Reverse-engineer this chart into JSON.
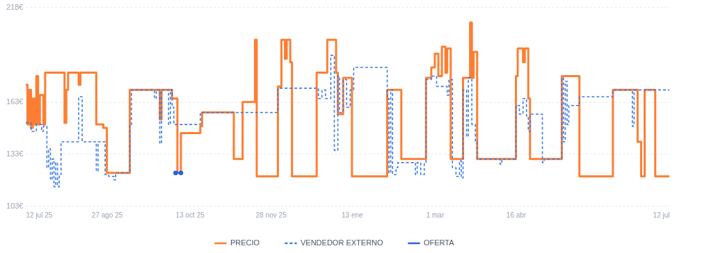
{
  "chart_data": {
    "type": "step",
    "xlim": [
      "2025-07-12",
      "2026-07-12"
    ],
    "ylim": [
      103,
      218
    ],
    "xticks": [
      {
        "value": "2025-07-12",
        "label": "12 jul 25"
      },
      {
        "value": "2025-08-27",
        "label": "27 ago 25"
      },
      {
        "value": "2025-10-13",
        "label": "13 oct 25"
      },
      {
        "value": "2025-11-28",
        "label": "28 nov 25"
      },
      {
        "value": "2026-01-13",
        "label": "13 ene"
      },
      {
        "value": "2026-03-01",
        "label": "1 mar"
      },
      {
        "value": "2026-04-16",
        "label": "16 abr"
      },
      {
        "value": "2026-07-12",
        "label": "12 jul"
      }
    ],
    "yticks": [
      {
        "value": 103,
        "label": "103€"
      },
      {
        "value": 133,
        "label": "133€"
      },
      {
        "value": 163,
        "label": "163€"
      },
      {
        "value": 218,
        "label": "218€"
      }
    ],
    "grid": "y",
    "legend": "bottom",
    "series": [
      {
        "name": "PRECIO",
        "color": "#fd7e33",
        "type": "step",
        "line_style": "solid",
        "x": [
          "2025-07-12",
          "2025-07-13",
          "2025-07-14",
          "2025-07-15",
          "2025-07-16",
          "2025-07-17",
          "2025-07-18",
          "2025-07-19",
          "2025-07-20",
          "2025-07-22",
          "2025-07-23",
          "2025-08-03",
          "2025-08-04",
          "2025-08-05",
          "2025-08-11",
          "2025-08-12",
          "2025-08-21",
          "2025-08-25",
          "2025-08-27",
          "2025-09-09",
          "2025-09-26",
          "2025-09-27",
          "2025-10-03",
          "2025-10-06",
          "2025-10-08",
          "2025-10-19",
          "2025-10-20",
          "2025-11-07",
          "2025-11-12",
          "2025-11-19",
          "2025-11-20",
          "2025-12-02",
          "2025-12-04",
          "2025-12-06",
          "2025-12-07",
          "2025-12-09",
          "2025-12-10",
          "2025-12-24",
          "2025-12-30",
          "2026-01-04",
          "2026-01-05",
          "2026-01-08",
          "2026-01-13",
          "2026-02-02",
          "2026-02-10",
          "2026-02-24",
          "2026-02-27",
          "2026-03-01",
          "2026-03-03",
          "2026-03-05",
          "2026-03-07",
          "2026-03-08",
          "2026-03-10",
          "2026-03-17",
          "2026-03-21",
          "2026-03-22",
          "2026-03-23",
          "2026-03-25",
          "2026-04-16",
          "2026-04-17",
          "2026-04-20",
          "2026-04-21",
          "2026-04-23",
          "2026-04-24",
          "2026-05-12",
          "2026-05-22",
          "2026-06-10",
          "2026-06-24",
          "2026-06-26",
          "2026-06-28",
          "2026-07-04",
          "2026-07-12"
        ],
        "values": [
          173,
          150,
          170,
          148,
          165,
          150,
          178,
          150,
          167,
          150,
          180,
          151,
          170,
          180,
          173,
          180,
          150,
          148,
          122,
          170,
          153,
          170,
          165,
          122,
          145,
          149,
          157,
          130,
          163,
          199,
          120,
          172,
          199,
          188,
          199,
          186,
          120,
          180,
          199,
          180,
          156,
          177,
          120,
          170,
          130,
          177,
          183,
          191,
          178,
          195,
          180,
          194,
          130,
          177,
          209,
          177,
          192,
          130,
          178,
          194,
          186,
          194,
          165,
          130,
          178,
          120,
          170,
          140,
          120,
          170,
          120,
          120
        ]
      },
      {
        "name": "VENDEDOR EXTERNO",
        "color": "#3b7be8",
        "type": "step",
        "line_style": "dashed",
        "x": [
          "2025-07-12",
          "2025-07-15",
          "2025-07-18",
          "2025-07-21",
          "2025-07-22",
          "2025-07-24",
          "2025-07-25",
          "2025-07-26",
          "2025-07-27",
          "2025-07-28",
          "2025-07-29",
          "2025-07-30",
          "2025-07-31",
          "2025-08-01",
          "2025-08-11",
          "2025-08-13",
          "2025-08-21",
          "2025-08-22",
          "2025-08-25",
          "2025-08-26",
          "2025-08-28",
          "2025-08-31",
          "2025-09-01",
          "2025-09-09",
          "2025-09-10",
          "2025-09-23",
          "2025-09-24",
          "2025-09-26",
          "2025-09-27",
          "2025-10-01",
          "2025-10-02",
          "2025-10-03",
          "2025-10-04",
          "2025-10-19",
          "2025-12-02",
          "2025-12-25",
          "2025-12-27",
          "2025-12-29",
          "2026-01-01",
          "2026-01-03",
          "2026-01-05",
          "2026-01-06",
          "2026-01-08",
          "2026-01-10",
          "2026-01-12",
          "2026-01-14",
          "2026-02-02",
          "2026-02-03",
          "2026-02-04",
          "2026-02-05",
          "2026-02-07",
          "2026-02-08",
          "2026-02-18",
          "2026-02-19",
          "2026-02-21",
          "2026-02-23",
          "2026-02-24",
          "2026-02-27",
          "2026-03-02",
          "2026-03-06",
          "2026-03-08",
          "2026-03-09",
          "2026-03-11",
          "2026-03-13",
          "2026-03-15",
          "2026-03-16",
          "2026-03-17",
          "2026-03-19",
          "2026-03-20",
          "2026-03-22",
          "2026-03-24",
          "2026-03-25",
          "2026-04-07",
          "2026-04-08",
          "2026-04-16",
          "2026-04-18",
          "2026-04-20",
          "2026-04-22",
          "2026-04-23",
          "2026-04-24",
          "2026-05-01",
          "2026-05-02",
          "2026-05-12",
          "2026-05-13",
          "2026-05-14",
          "2026-05-15",
          "2026-05-16",
          "2026-05-22",
          "2026-06-10",
          "2026-06-21",
          "2026-06-22",
          "2026-07-12"
        ],
        "values": [
          151,
          146,
          150,
          146,
          149,
          125,
          136,
          118,
          130,
          114,
          128,
          114,
          121,
          140,
          166,
          140,
          123,
          140,
          140,
          121,
          120,
          118,
          122,
          150,
          170,
          165,
          170,
          139,
          170,
          150,
          170,
          160,
          150,
          157,
          171,
          165,
          170,
          165,
          190,
          135,
          178,
          157,
          176,
          160,
          170,
          183,
          165,
          122,
          170,
          121,
          125,
          128,
          121,
          128,
          121,
          128,
          176,
          178,
          172,
          172,
          167,
          176,
          125,
          120,
          129,
          119,
          170,
          143,
          177,
          150,
          140,
          130,
          127,
          130,
          161,
          156,
          165,
          155,
          146,
          156,
          128,
          130,
          177,
          140,
          175,
          150,
          161,
          166,
          170,
          149,
          170,
          170
        ]
      },
      {
        "name": "OFERTA",
        "color": "#2563eb",
        "type": "line",
        "marker": "circle",
        "x": [
          "2025-10-05",
          "2025-10-08"
        ],
        "values": [
          122,
          122
        ]
      }
    ]
  }
}
